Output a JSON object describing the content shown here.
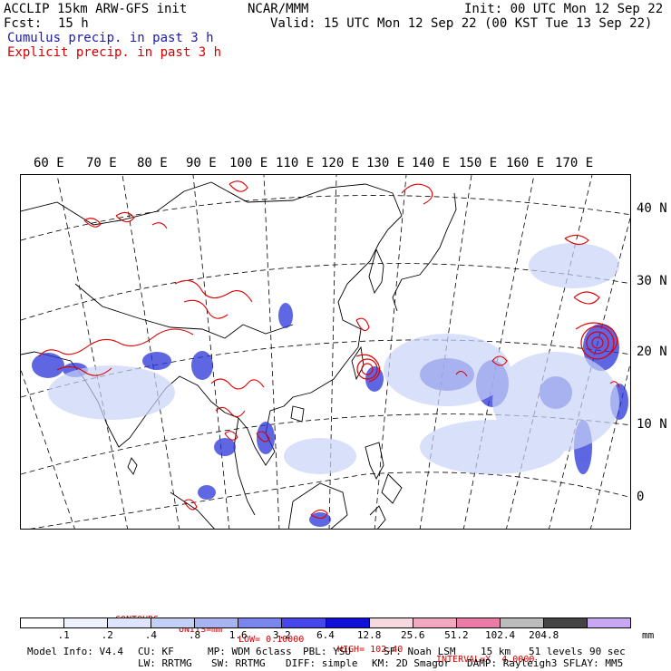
{
  "header": {
    "title_left": "ACCLIP 15km ARW-GFS init",
    "center": "NCAR/MMM",
    "init": "Init: 00 UTC Mon 12 Sep 22",
    "fcst_label": "Fcst:",
    "fcst_value": "15 h",
    "valid": "Valid: 15 UTC Mon 12 Sep 22 (00 KST Tue 13 Sep 22)",
    "cumulus_legend": "Cumulus precip. in past 3 h",
    "explicit_legend": "Explicit precip. in past 3 h"
  },
  "colors": {
    "cumulus": "#1a1aa8",
    "explicit": "#d40000"
  },
  "map": {
    "lon_labels": [
      "60 E",
      "70 E",
      "80 E",
      "90 E",
      "100 E",
      "110 E",
      "120 E",
      "130 E",
      "140 E",
      "150 E",
      "160 E",
      "170 E"
    ],
    "lat_labels": [
      "40 N",
      "30 N",
      "20 N",
      "10 N",
      "0"
    ]
  },
  "contours": {
    "label": "CONTOURS:",
    "units": "UNITS=mm",
    "low": "LOW= 0.10000",
    "high": "HIGH= 102.40",
    "interval": "INTERVAL=X  4.0000"
  },
  "colorbar": {
    "unit": "mm",
    "labels": [
      ".1",
      ".2",
      ".4",
      ".8",
      "1.6",
      "3.2",
      "6.4",
      "12.8",
      "25.6",
      "51.2",
      "102.4",
      "204.8"
    ],
    "colors": [
      "#ffffff",
      "#eef2ff",
      "#dde4fb",
      "#c4cff6",
      "#a8b4f2",
      "#7a86ee",
      "#4646ea",
      "#1010d8",
      "#f6d8e0",
      "#f2a8c0",
      "#ea7aa6",
      "#bcbcbc",
      "#444444",
      "#c8a8f4"
    ]
  },
  "footer": {
    "model_info": "Model Info: V4.4",
    "cu": "CU: KF",
    "mp": "MP: WDM 6class",
    "pbl": "PBL: YSU",
    "sf": "SF: Noah LSM",
    "res": "15 km",
    "levels": "51 levels",
    "dt": "90 sec",
    "lw": "LW: RRTMG",
    "sw": "SW: RRTMG",
    "diff": "DIFF: simple",
    "km": "KM: 2D Smagor",
    "damp": "DAMP: Rayleigh3",
    "sflay": "SFLAY: MM5"
  }
}
